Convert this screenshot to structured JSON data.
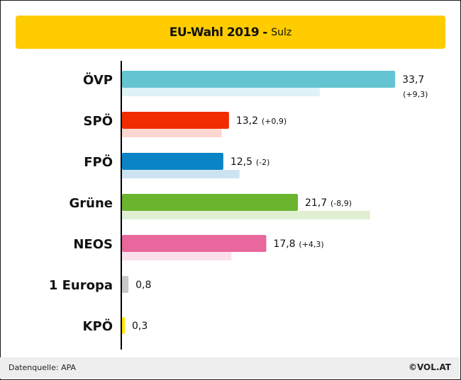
{
  "title": {
    "main": "EU-Wahl 2019",
    "separator": "-",
    "sub": "Sulz"
  },
  "footer": {
    "source": "Datenquelle: APA",
    "copyright": "©VOL.AT"
  },
  "chart_data": {
    "type": "bar",
    "orientation": "horizontal",
    "title": "EU-Wahl 2019 - Sulz",
    "categories": [
      "ÖVP",
      "SPÖ",
      "FPÖ",
      "Grüne",
      "NEOS",
      "1 Europa",
      "KPÖ"
    ],
    "series": [
      {
        "values": [
          33.7,
          13.2,
          12.5,
          21.7,
          17.8,
          0.8,
          0.3
        ],
        "labels": [
          "33,7",
          "13,2",
          "12,5",
          "21,7",
          "17,8",
          "0,8",
          "0,3"
        ],
        "changes": [
          "(+9,3)",
          "(+0,9)",
          "(-2)",
          "(-8,9)",
          "(+4,3)",
          "",
          ""
        ]
      },
      {
        "values": [
          24.4,
          12.3,
          14.5,
          30.6,
          13.5,
          null,
          null
        ]
      }
    ],
    "colors": [
      "#64c4d2",
      "#f02c00",
      "#0a84c4",
      "#6ab42e",
      "#e8679d",
      "#c8c8c8",
      "#ffe600"
    ],
    "previous_colors": [
      "#dff3f6",
      "#fdd7d0",
      "#cce4f2",
      "#e0efd2",
      "#fbe0ec",
      "#eeeeee",
      "#fff9c6"
    ],
    "xlim": [
      0,
      35
    ]
  }
}
